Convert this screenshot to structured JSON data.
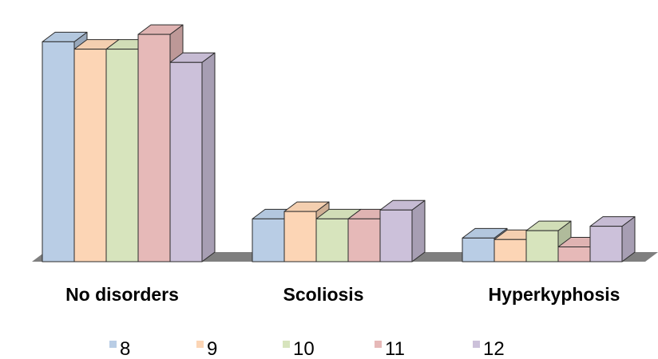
{
  "chart_data": {
    "type": "bar",
    "style": "3d-clustered-column",
    "categories": [
      "No disorders",
      "Scoliosis",
      "Hyperkyphosis"
    ],
    "series": [
      {
        "name": "8",
        "color": "#B9CDE5",
        "values": [
          74.5,
          14.5,
          8.0
        ]
      },
      {
        "name": "9",
        "color": "#FCD5B5",
        "values": [
          72.0,
          17.0,
          7.5
        ]
      },
      {
        "name": "10",
        "color": "#D7E4BD",
        "values": [
          72.0,
          14.5,
          10.5
        ]
      },
      {
        "name": "11",
        "color": "#E6B9B8",
        "values": [
          77.0,
          14.5,
          5.0
        ]
      },
      {
        "name": "12",
        "color": "#CCC1DA",
        "values": [
          67.5,
          17.5,
          12.0
        ]
      }
    ],
    "ylim": [
      0,
      80
    ],
    "legend_position": "bottom",
    "floor_color": "#7F7F7F",
    "grid": false
  }
}
